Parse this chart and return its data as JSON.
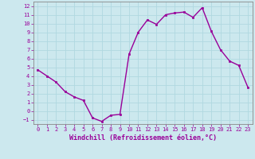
{
  "x": [
    0,
    1,
    2,
    3,
    4,
    5,
    6,
    7,
    8,
    9,
    10,
    11,
    12,
    13,
    14,
    15,
    16,
    17,
    18,
    19,
    20,
    21,
    22,
    23
  ],
  "y": [
    4.7,
    4.0,
    3.3,
    2.2,
    1.6,
    1.2,
    -0.8,
    -1.2,
    -0.5,
    -0.4,
    6.5,
    9.0,
    10.4,
    9.9,
    11.0,
    11.2,
    11.3,
    10.7,
    11.8,
    9.1,
    7.0,
    5.7,
    5.2,
    2.7
  ],
  "line_color": "#990099",
  "marker": "s",
  "markersize": 1.8,
  "linewidth": 1.0,
  "bg_color": "#cce8ee",
  "grid_color": "#b0d8e0",
  "xlabel": "Windchill (Refroidissement éolien,°C)",
  "xlabel_color": "#990099",
  "tick_color": "#990099",
  "spine_color": "#888888",
  "ylim": [
    -1.5,
    12.5
  ],
  "xlim": [
    -0.5,
    23.5
  ],
  "yticks": [
    -1,
    0,
    1,
    2,
    3,
    4,
    5,
    6,
    7,
    8,
    9,
    10,
    11,
    12
  ],
  "xticks": [
    0,
    1,
    2,
    3,
    4,
    5,
    6,
    7,
    8,
    9,
    10,
    11,
    12,
    13,
    14,
    15,
    16,
    17,
    18,
    19,
    20,
    21,
    22,
    23
  ],
  "tick_fontsize": 5.0,
  "xlabel_fontsize": 6.0
}
